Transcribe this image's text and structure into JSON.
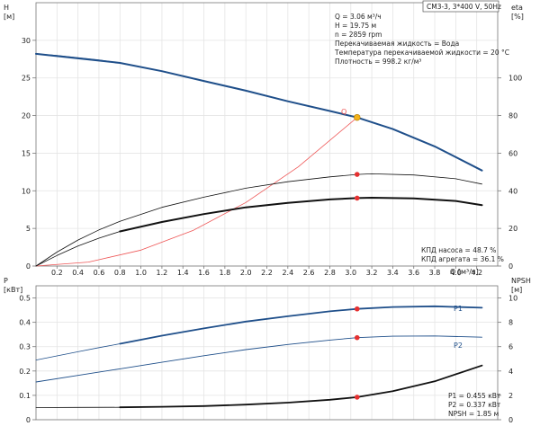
{
  "chart_data": [
    {
      "type": "line",
      "model_box": "CM3-3, 3*400 V, 50Hz",
      "xlabel": "Q [м³/ч]",
      "ylabel": "H [м]",
      "y2label": "eta [%]",
      "xlim": [
        0,
        4.4
      ],
      "ylim": [
        0,
        35
      ],
      "y2lim": [
        0,
        140
      ],
      "xticks": [
        0.2,
        0.4,
        0.6,
        0.8,
        1.0,
        1.2,
        1.4,
        1.6,
        1.8,
        2.0,
        2.2,
        2.4,
        2.6,
        2.8,
        3.0,
        3.2,
        3.4,
        3.6,
        3.8,
        4.0,
        4.2
      ],
      "yticks": [
        0,
        5,
        10,
        15,
        20,
        25,
        30
      ],
      "y2ticks": [
        0,
        20,
        40,
        60,
        80,
        100
      ],
      "grid": true,
      "info_lines": [
        "Q = 3.06 м³/ч",
        "H = 19.75 м",
        "n = 2859 rpm",
        "Перекачиваемая жидкость = Вода",
        "Температура перекачиваемой жидкости = 20 °C",
        "Плотность = 998.2 кг/м³"
      ],
      "efficiency_lines": [
        "КПД насоса = 48.7 %",
        "КПД агрегата = 36.1 %"
      ],
      "duty_point": {
        "x": 3.06,
        "y": 19.75,
        "label": "Q"
      },
      "series": [
        {
          "axis": "left",
          "color": "#1f4f8a",
          "width": 2.0,
          "x": [
            0.0,
            0.8,
            1.2,
            1.6,
            2.0,
            2.4,
            2.8,
            3.06,
            3.4,
            3.8,
            4.25
          ],
          "y": [
            28.2,
            27.0,
            25.9,
            24.6,
            23.3,
            21.9,
            20.6,
            19.75,
            18.2,
            15.9,
            12.7
          ]
        },
        {
          "axis": "left",
          "color": "#1f4f8a",
          "width": 0.8,
          "x": [
            0.0,
            0.2,
            0.4,
            0.6,
            0.8
          ],
          "y": [
            28.2,
            28.0,
            27.7,
            27.4,
            27.0
          ]
        },
        {
          "axis": "left",
          "color": "#ee5555",
          "width": 0.8,
          "x": [
            0.0,
            0.5,
            1.0,
            1.5,
            2.0,
            2.5,
            3.06
          ],
          "y": [
            0.0,
            0.53,
            2.11,
            4.75,
            8.44,
            13.19,
            19.75
          ]
        },
        {
          "axis": "right",
          "color": "#111111",
          "width": 2.0,
          "x": [
            0.8,
            1.2,
            1.6,
            2.0,
            2.4,
            2.8,
            3.06,
            3.2,
            3.6,
            4.0,
            4.25
          ],
          "y": [
            18.4,
            23.4,
            27.6,
            31.2,
            33.6,
            35.4,
            36.1,
            36.3,
            36.0,
            34.6,
            32.4
          ]
        },
        {
          "axis": "right",
          "color": "#111111",
          "width": 0.8,
          "x": [
            0.0,
            0.2,
            0.4,
            0.6,
            0.8
          ],
          "y": [
            0.0,
            5.6,
            10.6,
            14.8,
            18.4
          ]
        },
        {
          "axis": "right",
          "color": "#111111",
          "width": 0.8,
          "x": [
            0.0,
            0.2,
            0.4,
            0.6,
            0.8,
            1.2,
            1.6,
            2.0,
            2.4,
            2.8,
            3.06,
            3.2,
            3.6,
            4.0,
            4.25
          ],
          "y": [
            0.0,
            7.4,
            13.8,
            19.2,
            23.8,
            31.2,
            36.6,
            41.4,
            44.8,
            47.4,
            48.7,
            49.0,
            48.4,
            46.4,
            43.6
          ]
        }
      ],
      "markers": [
        {
          "axis": "left",
          "x": 3.06,
          "y": 19.75
        },
        {
          "axis": "right",
          "x": 3.06,
          "y": 48.7
        },
        {
          "axis": "right",
          "x": 3.06,
          "y": 36.1
        }
      ]
    },
    {
      "type": "line",
      "ylabel": "P [кВт]",
      "y2label": "NPSH [м]",
      "xlim": [
        0,
        4.4
      ],
      "ylim": [
        0,
        0.55
      ],
      "y2lim": [
        0,
        11
      ],
      "yticks": [
        0,
        0.1,
        0.2,
        0.3,
        0.4,
        0.5
      ],
      "y2ticks": [
        0,
        2,
        4,
        6,
        8,
        10
      ],
      "grid": true,
      "value_lines": [
        "P1 = 0.455 кВт",
        "P2 = 0.337 кВт",
        "NPSH = 1.85 м"
      ],
      "series": [
        {
          "name": "P1",
          "axis": "left",
          "color": "#1f4f8a",
          "width": 1.8,
          "x": [
            0.8,
            1.2,
            1.6,
            2.0,
            2.4,
            2.8,
            3.06,
            3.4,
            3.8,
            4.25
          ],
          "y": [
            0.312,
            0.345,
            0.375,
            0.403,
            0.425,
            0.445,
            0.455,
            0.463,
            0.466,
            0.46
          ]
        },
        {
          "name": "",
          "axis": "left",
          "color": "#1f4f8a",
          "width": 0.8,
          "x": [
            0.0,
            0.2,
            0.4,
            0.6,
            0.8
          ],
          "y": [
            0.245,
            0.262,
            0.279,
            0.296,
            0.312
          ]
        },
        {
          "name": "P2",
          "axis": "left",
          "color": "#1f4f8a",
          "width": 0.9,
          "x": [
            0.0,
            0.4,
            0.8,
            1.2,
            1.6,
            2.0,
            2.4,
            2.8,
            3.06,
            3.4,
            3.8,
            4.25
          ],
          "y": [
            0.155,
            0.182,
            0.209,
            0.236,
            0.263,
            0.288,
            0.309,
            0.327,
            0.337,
            0.343,
            0.344,
            0.339
          ]
        },
        {
          "name": "",
          "axis": "right",
          "color": "#111111",
          "width": 1.8,
          "x": [
            0.8,
            1.2,
            1.6,
            2.0,
            2.4,
            2.8,
            3.06,
            3.4,
            3.8,
            4.25
          ],
          "y": [
            1.02,
            1.06,
            1.12,
            1.24,
            1.4,
            1.64,
            1.85,
            2.35,
            3.15,
            4.45
          ]
        },
        {
          "name": "",
          "axis": "right",
          "color": "#111111",
          "width": 0.8,
          "x": [
            0.0,
            0.4,
            0.8
          ],
          "y": [
            1.0,
            1.01,
            1.02
          ]
        }
      ],
      "markers": [
        {
          "axis": "left",
          "x": 3.06,
          "y": 0.455
        },
        {
          "axis": "left",
          "x": 3.06,
          "y": 0.337
        },
        {
          "axis": "right",
          "x": 3.06,
          "y": 1.85
        }
      ]
    }
  ]
}
